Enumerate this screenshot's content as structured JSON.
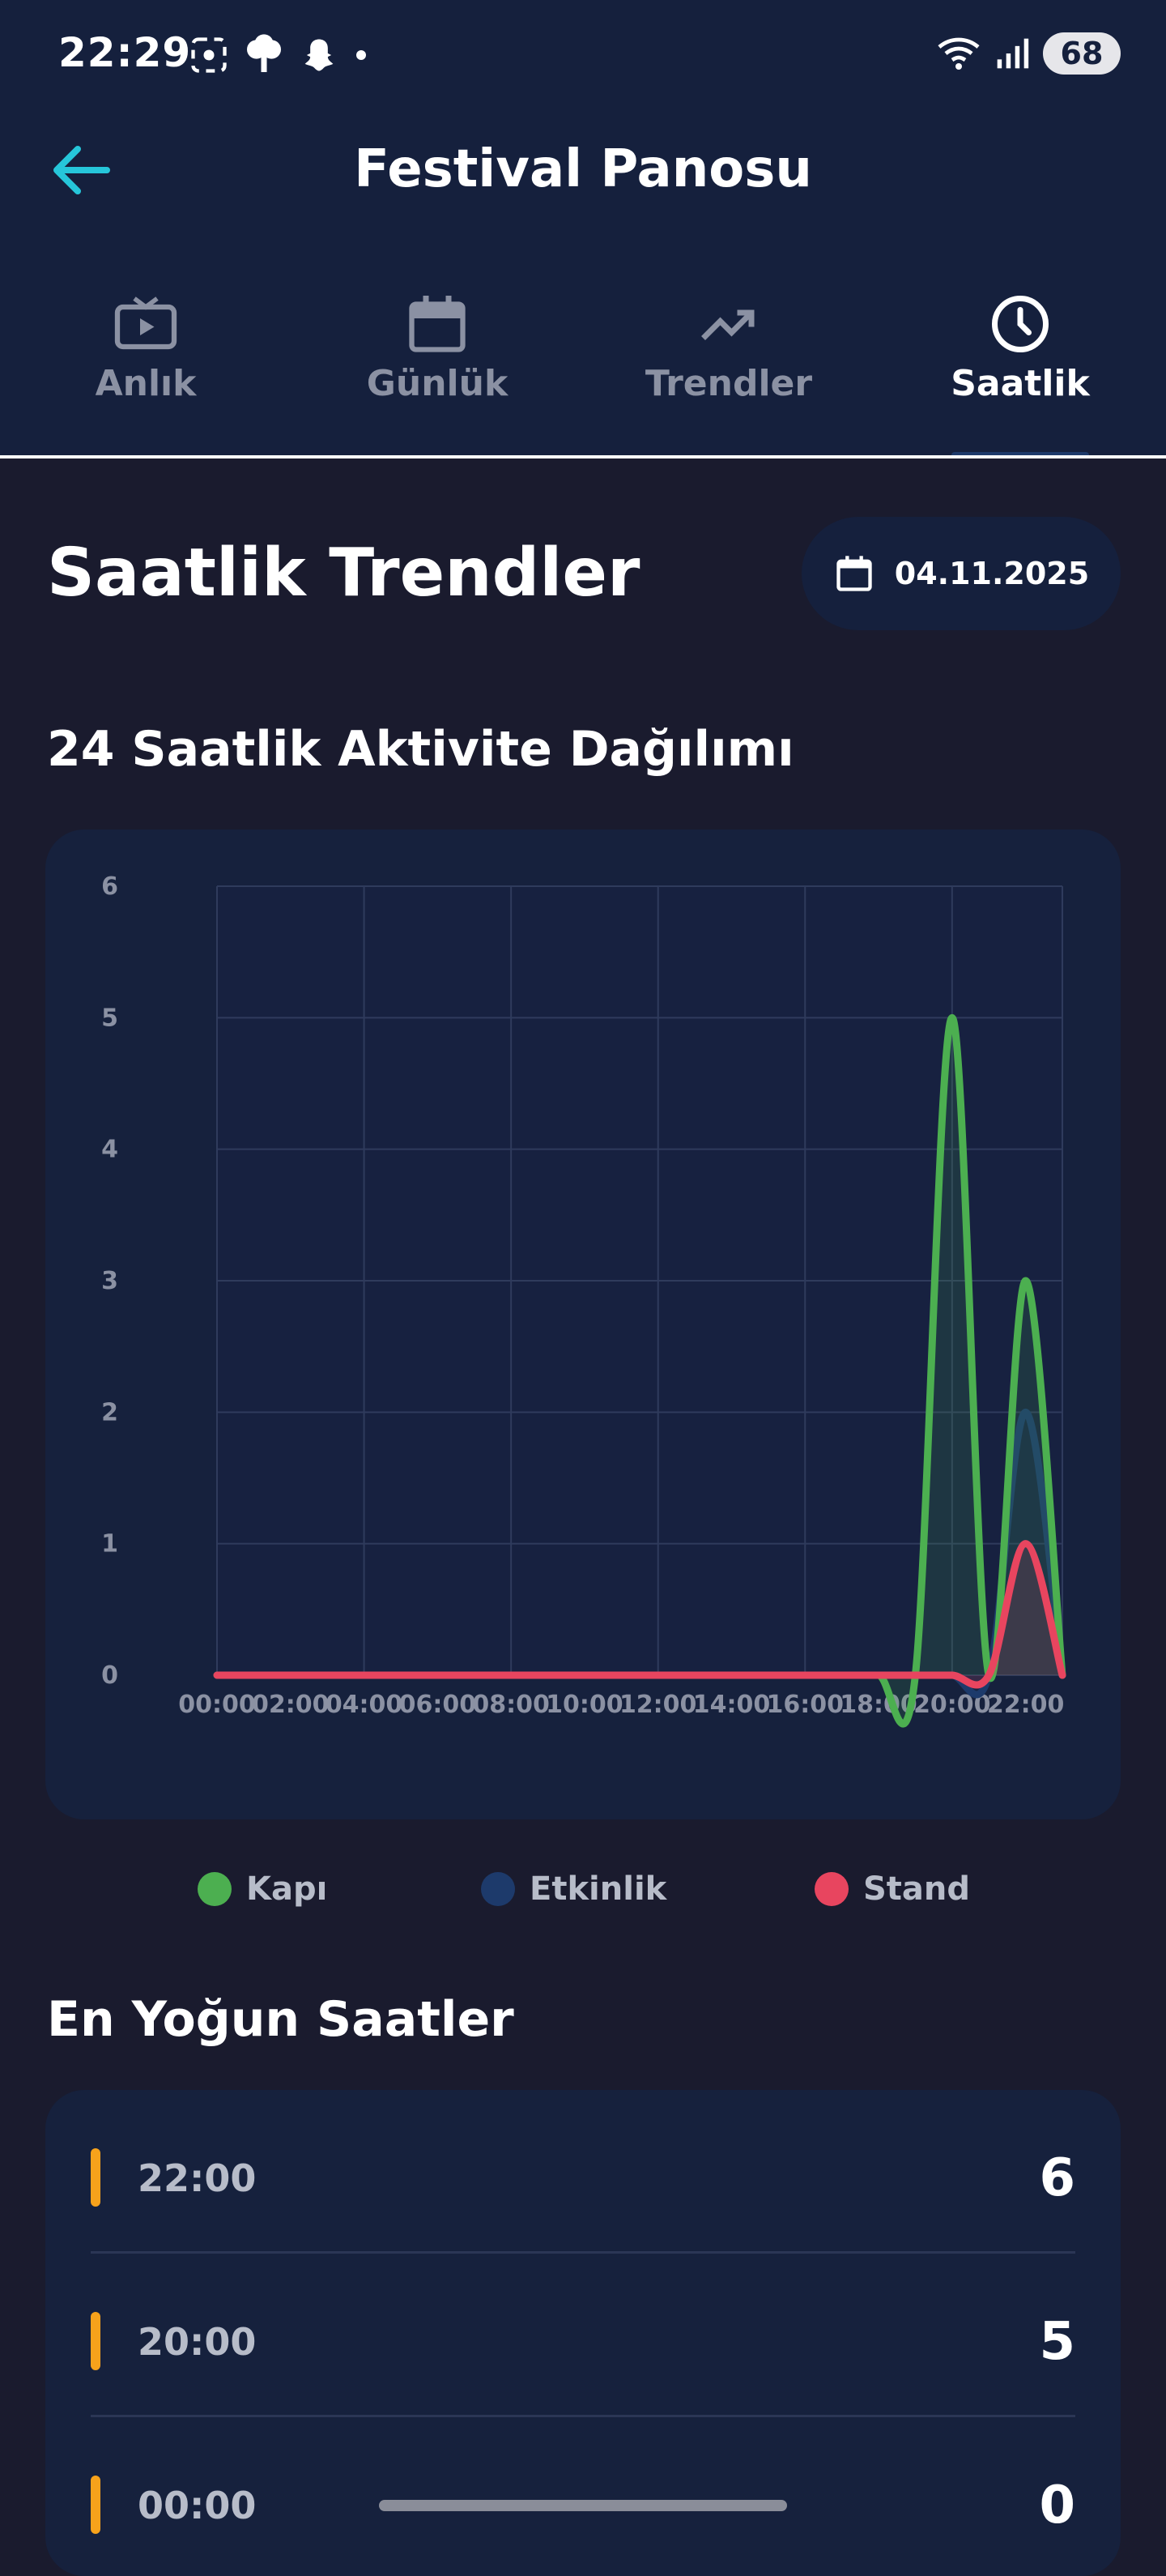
{
  "status_bar": {
    "time": "22:29",
    "battery": "68"
  },
  "app_bar": {
    "title": "Festival Panosu"
  },
  "tabs": [
    {
      "label": "Anlık",
      "icon": "live-tv-icon"
    },
    {
      "label": "Günlük",
      "icon": "calendar-icon"
    },
    {
      "label": "Trendler",
      "icon": "trending-up-icon"
    },
    {
      "label": "Saatlik",
      "icon": "clock-icon",
      "active": true
    }
  ],
  "page": {
    "title": "Saatlik Trendler",
    "date": "04.11.2025",
    "chart_section_title": "24 Saatlik Aktivite Dağılımı",
    "busiest_title": "En Yoğun Saatler"
  },
  "legend": [
    {
      "label": "Kapı",
      "color": "#4caf50"
    },
    {
      "label": "Etkinlik",
      "color": "#1d3a6b"
    },
    {
      "label": "Stand",
      "color": "#e8455f"
    }
  ],
  "busiest_hours": [
    {
      "hour": "22:00",
      "count": "6"
    },
    {
      "hour": "20:00",
      "count": "5"
    },
    {
      "hour": "00:00",
      "count": "0"
    }
  ],
  "colors": {
    "accent": "#26c6da",
    "header_bg": "#15203d",
    "page_bg": "#1a1b2e",
    "bar": "#f7a21b"
  },
  "chart_data": {
    "type": "line",
    "x": [
      "00:00",
      "01:00",
      "02:00",
      "03:00",
      "04:00",
      "05:00",
      "06:00",
      "07:00",
      "08:00",
      "09:00",
      "10:00",
      "11:00",
      "12:00",
      "13:00",
      "14:00",
      "15:00",
      "16:00",
      "17:00",
      "18:00",
      "19:00",
      "20:00",
      "21:00",
      "22:00",
      "23:00"
    ],
    "x_tick_labels": [
      "00:00",
      "02:00",
      "04:00",
      "06:00",
      "08:00",
      "10:00",
      "12:00",
      "14:00",
      "16:00",
      "18:00",
      "20:00",
      "22:00"
    ],
    "series": [
      {
        "name": "Kapı",
        "color": "#4caf50",
        "values": [
          0,
          0,
          0,
          0,
          0,
          0,
          0,
          0,
          0,
          0,
          0,
          0,
          0,
          0,
          0,
          0,
          0,
          0,
          0,
          0,
          5,
          0,
          3,
          0
        ]
      },
      {
        "name": "Etkinlik",
        "color": "#1d3a6b",
        "values": [
          0,
          0,
          0,
          0,
          0,
          0,
          0,
          0,
          0,
          0,
          0,
          0,
          0,
          0,
          0,
          0,
          0,
          0,
          0,
          0,
          0,
          0,
          2,
          0
        ]
      },
      {
        "name": "Stand",
        "color": "#e8455f",
        "values": [
          0,
          0,
          0,
          0,
          0,
          0,
          0,
          0,
          0,
          0,
          0,
          0,
          0,
          0,
          0,
          0,
          0,
          0,
          0,
          0,
          0,
          0,
          1,
          0
        ]
      }
    ],
    "yticks": [
      0,
      1,
      2,
      3,
      4,
      5,
      6
    ],
    "ylim": [
      0,
      6
    ],
    "grid": true,
    "legend_position": "bottom"
  }
}
